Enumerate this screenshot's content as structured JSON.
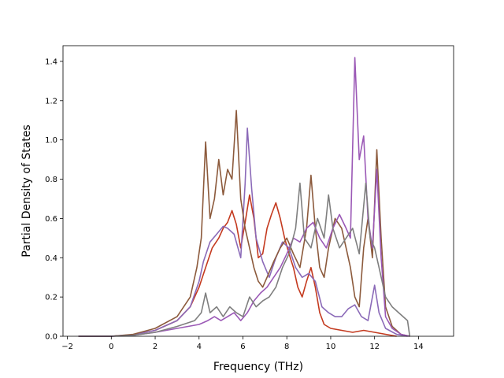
{
  "chart_data": {
    "type": "line",
    "title": "",
    "xlabel": "Frequency (THz)",
    "ylabel": "Partial Density of States",
    "xlim": [
      -2.2,
      15.6
    ],
    "ylim": [
      0.0,
      1.48
    ],
    "xticks": [
      -2,
      0,
      2,
      4,
      6,
      8,
      10,
      12,
      14
    ],
    "xtick_labels": [
      "−2",
      "0",
      "2",
      "4",
      "6",
      "8",
      "10",
      "12",
      "14"
    ],
    "yticks": [
      0.0,
      0.2,
      0.4,
      0.6,
      0.8,
      1.0,
      1.2,
      1.4
    ],
    "ytick_labels": [
      "0.0",
      "0.2",
      "0.4",
      "0.6",
      "0.8",
      "1.0",
      "1.2",
      "1.4"
    ],
    "grid": false,
    "legend": "none",
    "series": [
      {
        "color": "#c43a1f",
        "points": [
          [
            -1.5,
            0
          ],
          [
            -1,
            0
          ],
          [
            0,
            0
          ],
          [
            1,
            0.008
          ],
          [
            2,
            0.03
          ],
          [
            3,
            0.08
          ],
          [
            3.6,
            0.15
          ],
          [
            4,
            0.25
          ],
          [
            4.3,
            0.35
          ],
          [
            4.6,
            0.45
          ],
          [
            4.9,
            0.5
          ],
          [
            5.1,
            0.55
          ],
          [
            5.3,
            0.58
          ],
          [
            5.5,
            0.64
          ],
          [
            5.7,
            0.57
          ],
          [
            5.9,
            0.45
          ],
          [
            6.1,
            0.58
          ],
          [
            6.3,
            0.72
          ],
          [
            6.5,
            0.6
          ],
          [
            6.7,
            0.4
          ],
          [
            6.9,
            0.42
          ],
          [
            7.1,
            0.55
          ],
          [
            7.3,
            0.62
          ],
          [
            7.5,
            0.68
          ],
          [
            7.7,
            0.6
          ],
          [
            7.9,
            0.5
          ],
          [
            8.1,
            0.42
          ],
          [
            8.3,
            0.35
          ],
          [
            8.5,
            0.25
          ],
          [
            8.7,
            0.2
          ],
          [
            8.9,
            0.28
          ],
          [
            9.1,
            0.35
          ],
          [
            9.3,
            0.25
          ],
          [
            9.5,
            0.12
          ],
          [
            9.7,
            0.06
          ],
          [
            10,
            0.04
          ],
          [
            10.5,
            0.03
          ],
          [
            11,
            0.02
          ],
          [
            11.5,
            0.03
          ],
          [
            12,
            0.02
          ],
          [
            12.5,
            0.01
          ],
          [
            13,
            0
          ]
        ]
      },
      {
        "color": "#8b6ab8",
        "points": [
          [
            -1.5,
            0
          ],
          [
            0,
            0
          ],
          [
            1,
            0.008
          ],
          [
            2,
            0.03
          ],
          [
            3,
            0.08
          ],
          [
            3.6,
            0.15
          ],
          [
            4,
            0.28
          ],
          [
            4.2,
            0.38
          ],
          [
            4.5,
            0.48
          ],
          [
            4.8,
            0.52
          ],
          [
            5.1,
            0.56
          ],
          [
            5.3,
            0.55
          ],
          [
            5.6,
            0.52
          ],
          [
            5.9,
            0.4
          ],
          [
            6.1,
            0.78
          ],
          [
            6.2,
            1.06
          ],
          [
            6.4,
            0.75
          ],
          [
            6.6,
            0.5
          ],
          [
            6.9,
            0.38
          ],
          [
            7.2,
            0.3
          ],
          [
            7.5,
            0.4
          ],
          [
            7.8,
            0.48
          ],
          [
            8.1,
            0.45
          ],
          [
            8.4,
            0.35
          ],
          [
            8.7,
            0.3
          ],
          [
            9,
            0.32
          ],
          [
            9.3,
            0.28
          ],
          [
            9.6,
            0.15
          ],
          [
            9.9,
            0.12
          ],
          [
            10.2,
            0.1
          ],
          [
            10.5,
            0.1
          ],
          [
            10.8,
            0.14
          ],
          [
            11.1,
            0.16
          ],
          [
            11.4,
            0.1
          ],
          [
            11.7,
            0.08
          ],
          [
            12,
            0.26
          ],
          [
            12.2,
            0.12
          ],
          [
            12.5,
            0.04
          ],
          [
            13,
            0.01
          ],
          [
            13.5,
            0
          ]
        ]
      },
      {
        "color": "#8c5a3c",
        "points": [
          [
            -1.5,
            0
          ],
          [
            0,
            0
          ],
          [
            1,
            0.01
          ],
          [
            2,
            0.04
          ],
          [
            3,
            0.1
          ],
          [
            3.6,
            0.2
          ],
          [
            3.9,
            0.35
          ],
          [
            4.1,
            0.5
          ],
          [
            4.3,
            0.99
          ],
          [
            4.5,
            0.6
          ],
          [
            4.7,
            0.7
          ],
          [
            4.9,
            0.9
          ],
          [
            5.1,
            0.72
          ],
          [
            5.3,
            0.85
          ],
          [
            5.5,
            0.8
          ],
          [
            5.7,
            1.15
          ],
          [
            5.9,
            0.7
          ],
          [
            6.1,
            0.55
          ],
          [
            6.3,
            0.45
          ],
          [
            6.5,
            0.35
          ],
          [
            6.7,
            0.28
          ],
          [
            6.9,
            0.25
          ],
          [
            7.1,
            0.3
          ],
          [
            7.4,
            0.38
          ],
          [
            7.7,
            0.45
          ],
          [
            8,
            0.5
          ],
          [
            8.3,
            0.42
          ],
          [
            8.6,
            0.35
          ],
          [
            8.9,
            0.55
          ],
          [
            9.1,
            0.82
          ],
          [
            9.3,
            0.55
          ],
          [
            9.5,
            0.35
          ],
          [
            9.7,
            0.3
          ],
          [
            9.9,
            0.45
          ],
          [
            10.2,
            0.6
          ],
          [
            10.5,
            0.55
          ],
          [
            10.7,
            0.45
          ],
          [
            10.9,
            0.35
          ],
          [
            11.1,
            0.2
          ],
          [
            11.3,
            0.15
          ],
          [
            11.5,
            0.45
          ],
          [
            11.7,
            0.6
          ],
          [
            11.9,
            0.4
          ],
          [
            12.1,
            0.95
          ],
          [
            12.3,
            0.5
          ],
          [
            12.5,
            0.15
          ],
          [
            12.8,
            0.05
          ],
          [
            13.2,
            0.01
          ],
          [
            13.6,
            0
          ]
        ]
      },
      {
        "color": "#9b59b6",
        "points": [
          [
            -1.5,
            0
          ],
          [
            0,
            0
          ],
          [
            1,
            0.005
          ],
          [
            2,
            0.02
          ],
          [
            3,
            0.04
          ],
          [
            4,
            0.06
          ],
          [
            4.4,
            0.08
          ],
          [
            4.7,
            0.1
          ],
          [
            5,
            0.08
          ],
          [
            5.3,
            0.1
          ],
          [
            5.6,
            0.12
          ],
          [
            5.9,
            0.08
          ],
          [
            6.2,
            0.12
          ],
          [
            6.5,
            0.18
          ],
          [
            6.8,
            0.22
          ],
          [
            7.1,
            0.25
          ],
          [
            7.4,
            0.3
          ],
          [
            7.7,
            0.35
          ],
          [
            8,
            0.42
          ],
          [
            8.3,
            0.5
          ],
          [
            8.6,
            0.48
          ],
          [
            8.9,
            0.55
          ],
          [
            9.2,
            0.58
          ],
          [
            9.5,
            0.5
          ],
          [
            9.8,
            0.45
          ],
          [
            10.1,
            0.55
          ],
          [
            10.4,
            0.62
          ],
          [
            10.7,
            0.55
          ],
          [
            10.9,
            0.5
          ],
          [
            11.1,
            1.42
          ],
          [
            11.3,
            0.9
          ],
          [
            11.5,
            1.02
          ],
          [
            11.7,
            0.6
          ],
          [
            11.9,
            0.45
          ],
          [
            12.1,
            0.85
          ],
          [
            12.3,
            0.4
          ],
          [
            12.5,
            0.1
          ],
          [
            12.8,
            0.04
          ],
          [
            13.2,
            0.01
          ],
          [
            13.6,
            0
          ]
        ]
      },
      {
        "color": "#7f7f7f",
        "points": [
          [
            -1.5,
            0
          ],
          [
            0,
            0
          ],
          [
            1,
            0.005
          ],
          [
            2,
            0.02
          ],
          [
            3,
            0.05
          ],
          [
            3.8,
            0.08
          ],
          [
            4.1,
            0.12
          ],
          [
            4.3,
            0.22
          ],
          [
            4.5,
            0.12
          ],
          [
            4.8,
            0.15
          ],
          [
            5.1,
            0.1
          ],
          [
            5.4,
            0.15
          ],
          [
            5.7,
            0.12
          ],
          [
            6,
            0.1
          ],
          [
            6.3,
            0.2
          ],
          [
            6.6,
            0.15
          ],
          [
            6.9,
            0.18
          ],
          [
            7.2,
            0.2
          ],
          [
            7.5,
            0.25
          ],
          [
            7.8,
            0.35
          ],
          [
            8.1,
            0.42
          ],
          [
            8.4,
            0.55
          ],
          [
            8.6,
            0.78
          ],
          [
            8.8,
            0.5
          ],
          [
            9.1,
            0.45
          ],
          [
            9.4,
            0.6
          ],
          [
            9.7,
            0.5
          ],
          [
            9.9,
            0.72
          ],
          [
            10.1,
            0.55
          ],
          [
            10.4,
            0.45
          ],
          [
            10.7,
            0.5
          ],
          [
            11,
            0.55
          ],
          [
            11.3,
            0.42
          ],
          [
            11.6,
            0.78
          ],
          [
            11.8,
            0.5
          ],
          [
            12,
            0.45
          ],
          [
            12.2,
            0.35
          ],
          [
            12.5,
            0.2
          ],
          [
            12.8,
            0.15
          ],
          [
            13.1,
            0.12
          ],
          [
            13.3,
            0.1
          ],
          [
            13.5,
            0.08
          ],
          [
            13.6,
            0
          ]
        ]
      }
    ]
  }
}
